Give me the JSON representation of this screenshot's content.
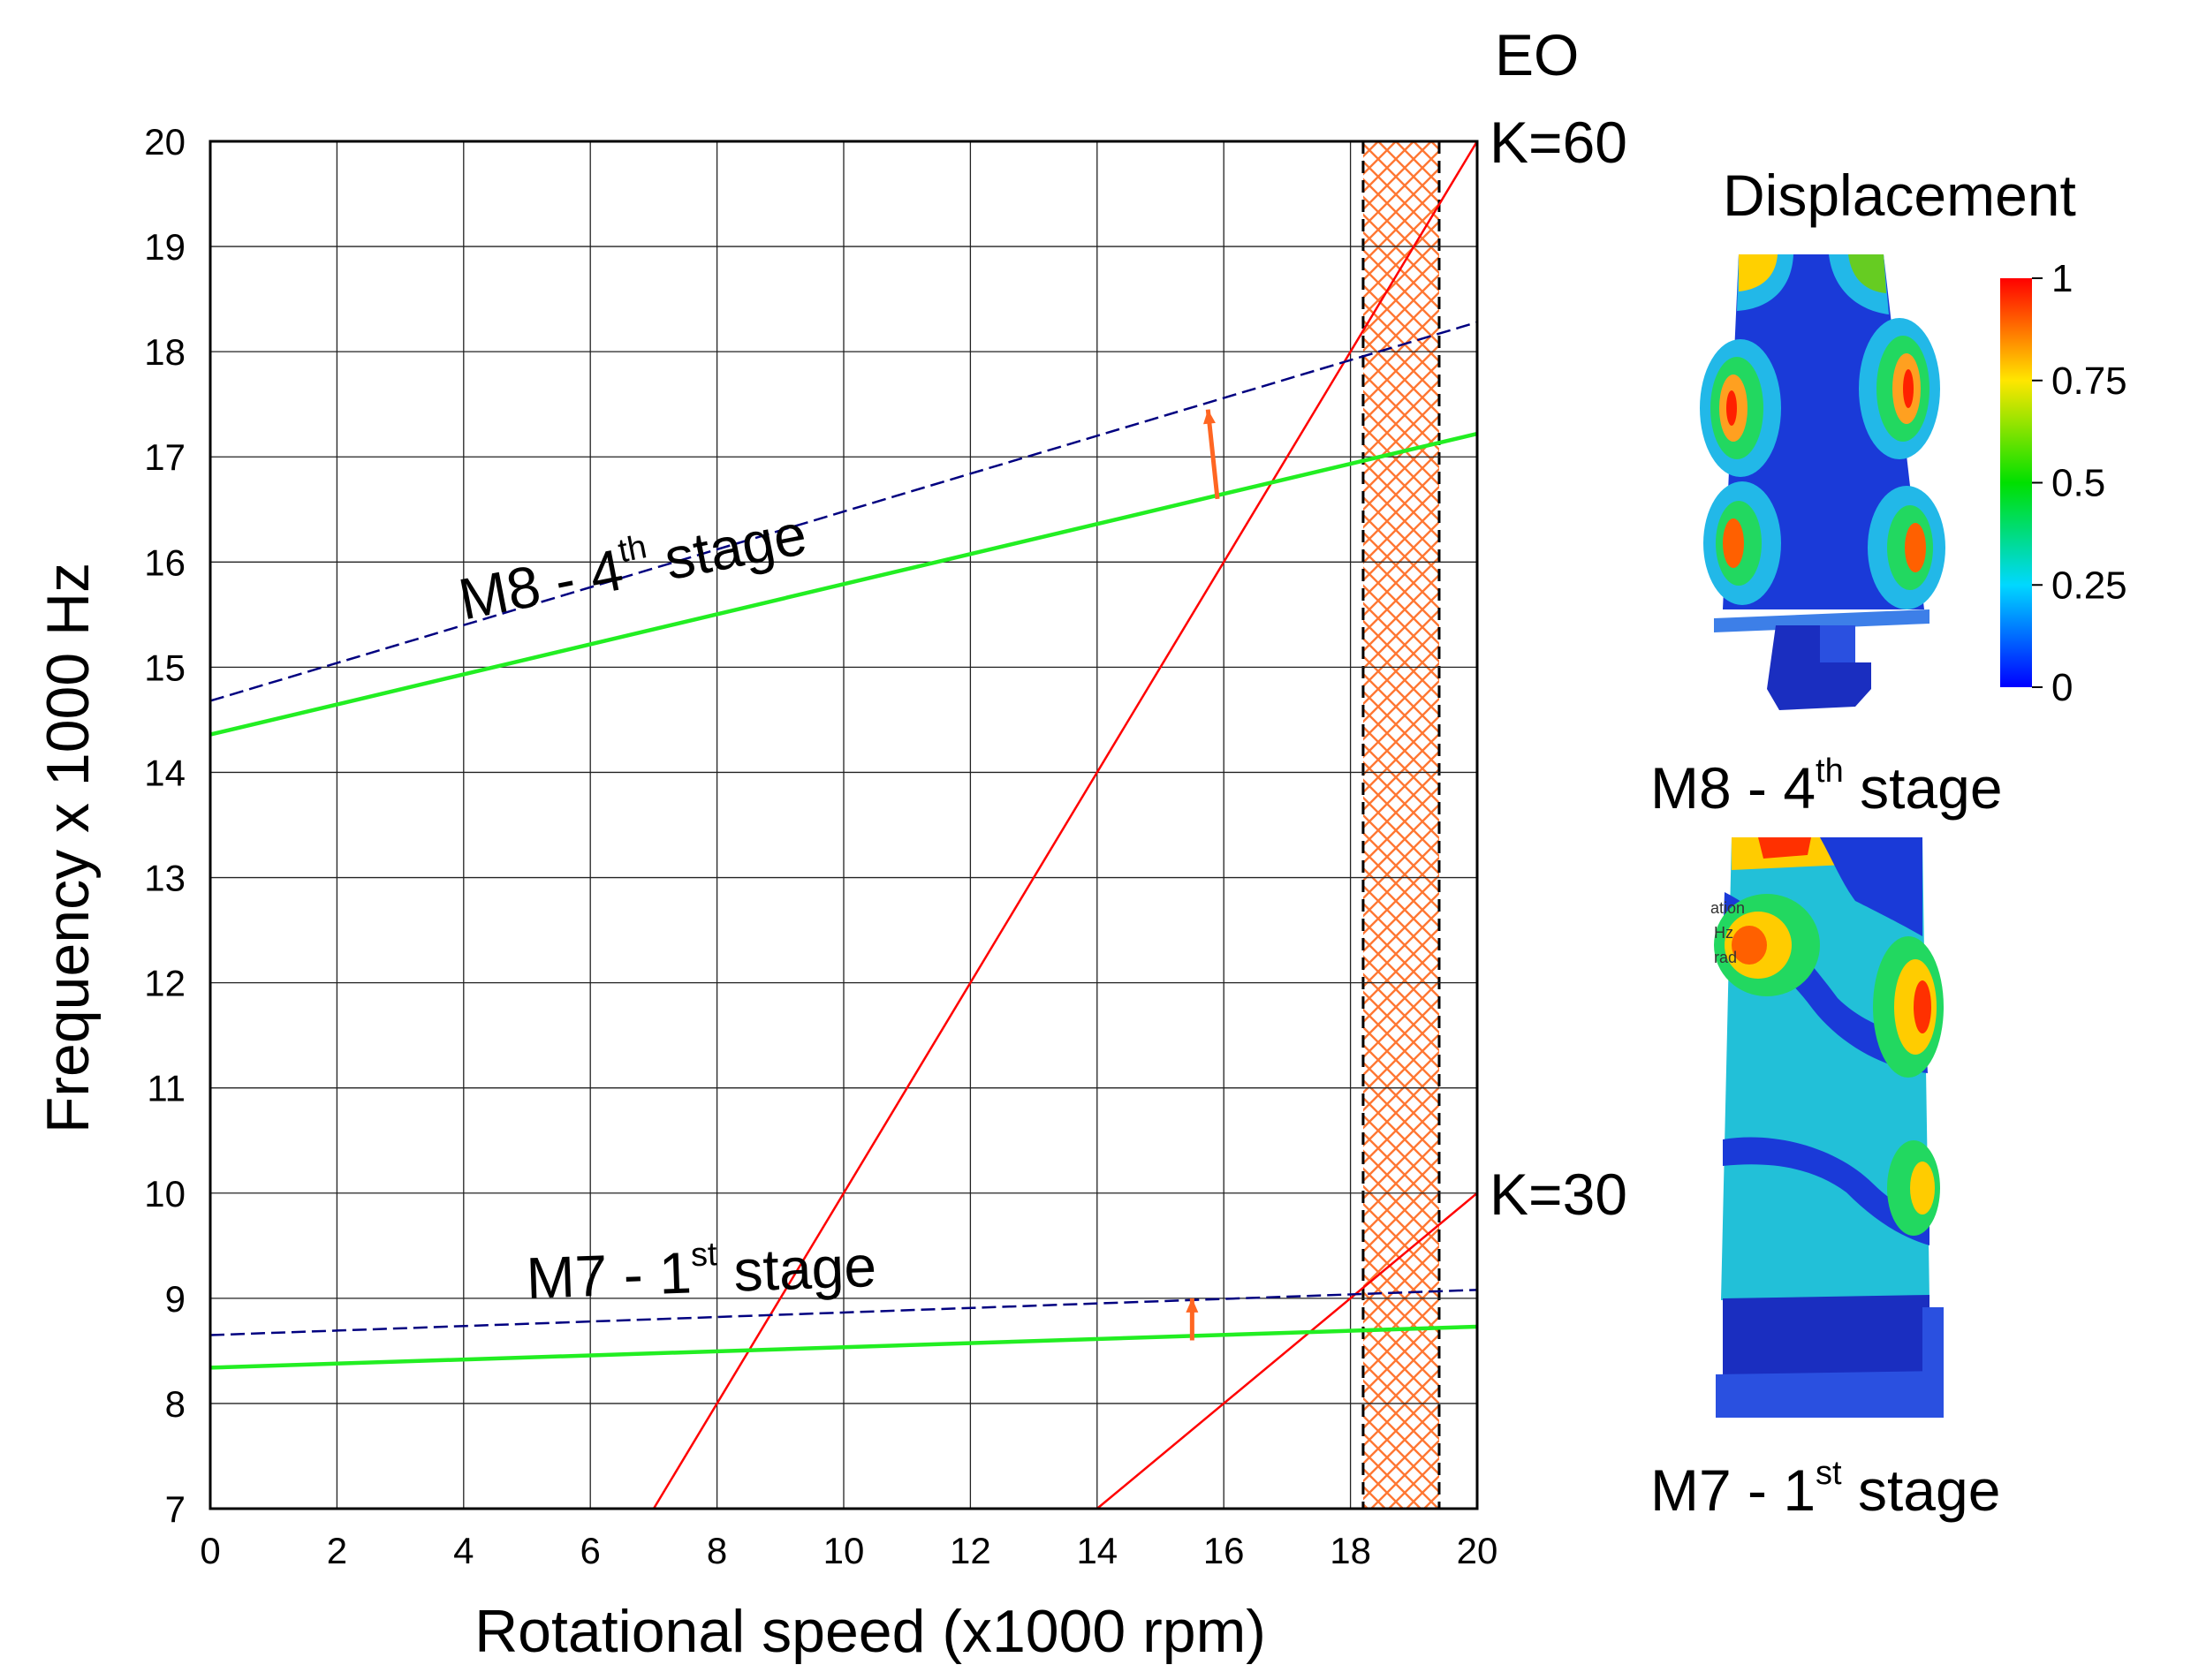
{
  "chart_data": {
    "type": "line",
    "title": "",
    "xlabel": "Rotational speed (x1000 rpm)",
    "ylabel": "Frequency x 1000 Hz",
    "xlim": [
      0,
      20
    ],
    "ylim": [
      7,
      20
    ],
    "x_ticks": [
      0,
      2,
      4,
      6,
      8,
      10,
      12,
      14,
      16,
      18,
      20
    ],
    "y_ticks": [
      7,
      8,
      9,
      10,
      11,
      12,
      13,
      14,
      15,
      16,
      17,
      18,
      19,
      20
    ],
    "grid": true,
    "series": [
      {
        "name": "EO K=60",
        "label": "K=60",
        "style": "solid",
        "color": "#ff0000",
        "x": [
          7,
          20
        ],
        "y": [
          7,
          20
        ]
      },
      {
        "name": "EO K=30",
        "label": "K=30",
        "style": "solid",
        "color": "#ff0000",
        "x": [
          14,
          20
        ],
        "y": [
          7,
          10
        ]
      },
      {
        "name": "M8 - 4th stage (dashed)",
        "style": "dashed",
        "color": "#000080",
        "x": [
          0,
          20
        ],
        "y": [
          14.68,
          18.28
        ]
      },
      {
        "name": "M8 - 4th stage (solid)",
        "style": "solid",
        "color": "#22ee22",
        "x": [
          0,
          20
        ],
        "y": [
          14.36,
          17.22
        ]
      },
      {
        "name": "M7 - 1st stage (dashed)",
        "style": "dashed",
        "color": "#000080",
        "x": [
          0,
          20
        ],
        "y": [
          8.65,
          9.08
        ]
      },
      {
        "name": "M7 - 1st stage (solid)",
        "style": "solid",
        "color": "#22ee22",
        "x": [
          0,
          20
        ],
        "y": [
          8.34,
          8.73
        ]
      }
    ],
    "arrows": [
      {
        "x": [
          15.9,
          15.75
        ],
        "y": [
          16.6,
          17.45
        ],
        "color": "#ff6622"
      },
      {
        "x": [
          15.5,
          15.5
        ],
        "y": [
          8.6,
          9.0
        ],
        "color": "#ff6622"
      }
    ],
    "hatched_band": {
      "x_range": [
        18.2,
        19.4
      ],
      "color": "#ff7733"
    },
    "eo_label": "EO",
    "annotations": [
      {
        "main": "M8 - 4",
        "sup": "th",
        "tail": " stage",
        "x": 4.0,
        "y": 15.45,
        "rotation": -11
      },
      {
        "main": "M7 - 1",
        "sup": "st",
        "tail": " stage",
        "x": 5.0,
        "y": 9.0,
        "rotation": -2
      }
    ]
  },
  "right_panel": {
    "title": "Displacement",
    "colorbar_ticks": [
      "1",
      "0.75",
      "0.5",
      "0.25",
      "0"
    ],
    "caption_top": {
      "main": "M8 - 4",
      "sup": "th",
      "tail": " stage"
    },
    "caption_bottom": {
      "main": "M7 - 1",
      "sup": "st",
      "tail": " stage"
    },
    "fragment_text": [
      "ation",
      "Hz",
      "rad"
    ]
  }
}
